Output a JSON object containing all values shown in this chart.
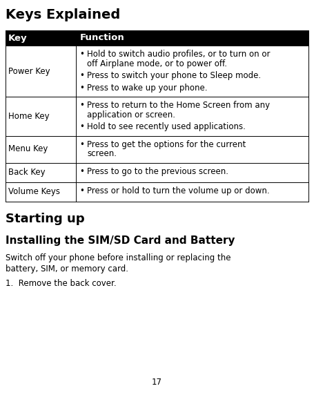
{
  "title": "Keys Explained",
  "title_fontsize": 14,
  "table_header": [
    "Key",
    "Function"
  ],
  "table_header_fontsize": 9.5,
  "rows": [
    {
      "key": "Power Key",
      "bullets": [
        "Hold to switch audio profiles, or to turn on or off Airplane mode, or to power off.",
        "Press to switch your phone to Sleep mode.",
        "Press to wake up your phone."
      ]
    },
    {
      "key": "Home Key",
      "bullets": [
        "Press to return to the Home Screen from any application or screen.",
        "Hold to see recently used applications."
      ]
    },
    {
      "key": "Menu Key",
      "bullets": [
        "Press to get the options for the current screen."
      ]
    },
    {
      "key": "Back Key",
      "bullets": [
        "Press to go to the previous screen."
      ]
    },
    {
      "key": "Volume Keys",
      "bullets": [
        "Press or hold to turn the volume up or down."
      ]
    }
  ],
  "section2_title": "Starting up",
  "section2_title_fontsize": 13,
  "section3_title": "Installing the SIM/SD Card and Battery",
  "section3_title_fontsize": 11,
  "body_text": "Switch off your phone before installing or replacing the battery, SIM, or memory card.",
  "list_item": "1.  Remove the back cover.",
  "page_number": "17",
  "font_size_body": 8.5,
  "bg_color": "#ffffff",
  "text_color": "#000000"
}
